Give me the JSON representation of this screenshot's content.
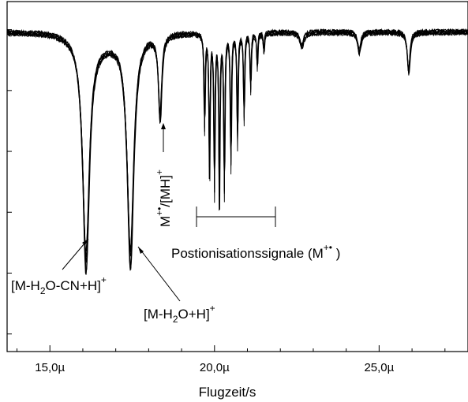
{
  "chart_data": {
    "type": "line",
    "xlabel": "Flugzeit/s",
    "ylabel": "",
    "xlim": [
      1.37e-05,
      2.77e-05
    ],
    "ylim": [
      -1.05,
      0.1
    ],
    "x_ticks": [
      1.5e-05,
      2e-05,
      2.5e-05
    ],
    "x_tick_labels": [
      "15,0µ",
      "20,0µ",
      "25,0µ"
    ],
    "y_tick_labels": [],
    "grid": false,
    "legend": "none",
    "color": "#000000",
    "baseline": 0,
    "peaks": [
      {
        "x": 1.61e-05,
        "depth": 0.78,
        "width": 1.2e-07
      },
      {
        "x": 1.745e-05,
        "depth": 0.78,
        "width": 1.2e-07
      },
      {
        "x": 1.835e-05,
        "depth": 0.29,
        "width": 6e-08
      },
      {
        "x": 1.97e-05,
        "depth": 0.33,
        "width": 2e-08
      },
      {
        "x": 1.985e-05,
        "depth": 0.48,
        "width": 2e-08
      },
      {
        "x": 2e-05,
        "depth": 0.54,
        "width": 2e-08
      },
      {
        "x": 2.015e-05,
        "depth": 0.58,
        "width": 2e-08
      },
      {
        "x": 2.03e-05,
        "depth": 0.55,
        "width": 2e-08
      },
      {
        "x": 2.05e-05,
        "depth": 0.46,
        "width": 2e-08
      },
      {
        "x": 2.07e-05,
        "depth": 0.38,
        "width": 2e-08
      },
      {
        "x": 2.09e-05,
        "depth": 0.3,
        "width": 2e-08
      },
      {
        "x": 2.11e-05,
        "depth": 0.2,
        "width": 2e-08
      },
      {
        "x": 2.13e-05,
        "depth": 0.12,
        "width": 2e-08
      },
      {
        "x": 2.15e-05,
        "depth": 0.07,
        "width": 2e-08
      },
      {
        "x": 2.265e-05,
        "depth": 0.05,
        "width": 7e-08
      },
      {
        "x": 2.44e-05,
        "depth": 0.07,
        "width": 6e-08
      },
      {
        "x": 2.59e-05,
        "depth": 0.14,
        "width": 5e-08
      }
    ],
    "annotations": [
      {
        "text": "[M-H",
        "sub": "2",
        "rest": "O-CN+H]",
        "sup": "+"
      },
      {
        "text": "[M-H",
        "sub": "2",
        "rest": "O+H]",
        "sup": "+"
      },
      {
        "text": "M",
        "sup": "+•",
        "rest": "/[MH]",
        "sup2": "+"
      },
      {
        "text": "Postionisationssignale (M",
        "sup": "+•",
        "rest": " )"
      }
    ]
  }
}
